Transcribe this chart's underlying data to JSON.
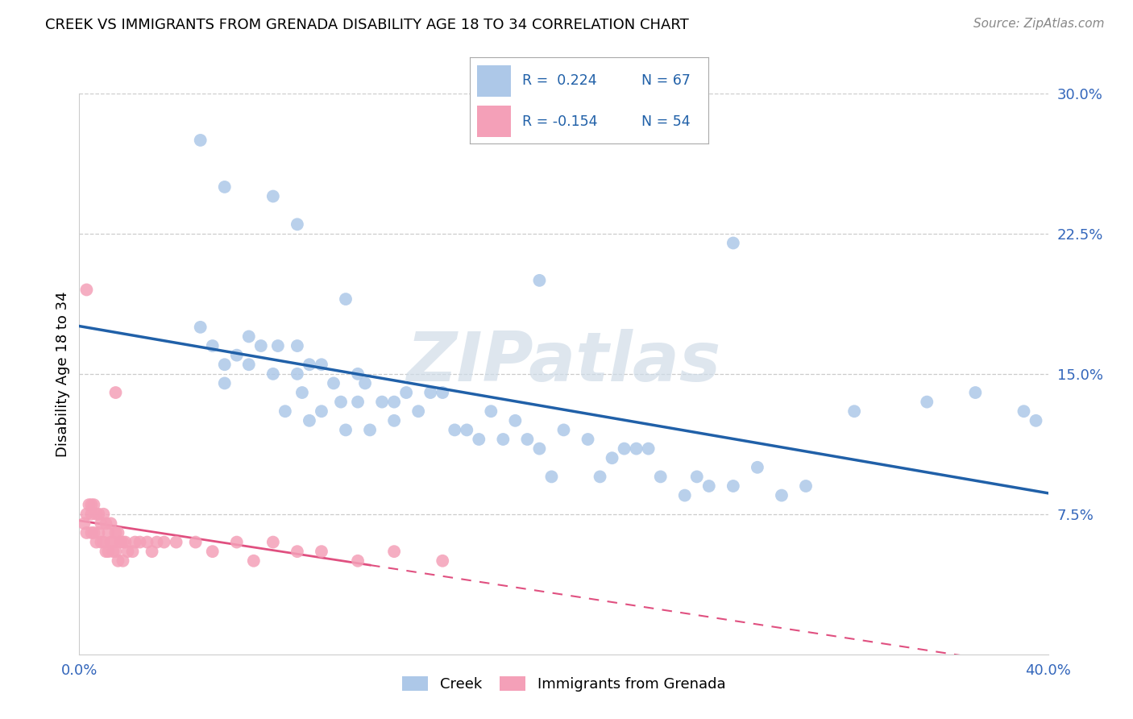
{
  "title": "CREEK VS IMMIGRANTS FROM GRENADA DISABILITY AGE 18 TO 34 CORRELATION CHART",
  "source": "Source: ZipAtlas.com",
  "ylabel": "Disability Age 18 to 34",
  "xmin": 0.0,
  "xmax": 0.4,
  "ymin": 0.0,
  "ymax": 0.3,
  "ytick_vals": [
    0.0,
    0.075,
    0.15,
    0.225,
    0.3
  ],
  "ytick_labels": [
    "",
    "7.5%",
    "15.0%",
    "22.5%",
    "30.0%"
  ],
  "creek_color": "#adc8e8",
  "creek_edge": "#adc8e8",
  "creek_line_color": "#2060a8",
  "gren_color": "#f4a0b8",
  "gren_edge": "#f4a0b8",
  "gren_line_color": "#e05080",
  "watermark": "ZIPatlas",
  "creek_x": [
    0.05,
    0.055,
    0.06,
    0.06,
    0.065,
    0.07,
    0.07,
    0.075,
    0.08,
    0.082,
    0.085,
    0.09,
    0.09,
    0.092,
    0.095,
    0.095,
    0.1,
    0.1,
    0.105,
    0.108,
    0.11,
    0.115,
    0.115,
    0.118,
    0.12,
    0.125,
    0.13,
    0.13,
    0.135,
    0.14,
    0.145,
    0.15,
    0.155,
    0.16,
    0.165,
    0.17,
    0.175,
    0.18,
    0.185,
    0.19,
    0.195,
    0.2,
    0.21,
    0.215,
    0.22,
    0.225,
    0.23,
    0.235,
    0.24,
    0.25,
    0.255,
    0.26,
    0.27,
    0.28,
    0.29,
    0.3,
    0.32,
    0.35,
    0.37,
    0.39,
    0.395,
    0.09,
    0.19,
    0.05,
    0.27,
    0.11,
    0.06,
    0.08
  ],
  "creek_y": [
    0.175,
    0.165,
    0.155,
    0.145,
    0.16,
    0.17,
    0.155,
    0.165,
    0.15,
    0.165,
    0.13,
    0.15,
    0.165,
    0.14,
    0.155,
    0.125,
    0.155,
    0.13,
    0.145,
    0.135,
    0.12,
    0.15,
    0.135,
    0.145,
    0.12,
    0.135,
    0.135,
    0.125,
    0.14,
    0.13,
    0.14,
    0.14,
    0.12,
    0.12,
    0.115,
    0.13,
    0.115,
    0.125,
    0.115,
    0.11,
    0.095,
    0.12,
    0.115,
    0.095,
    0.105,
    0.11,
    0.11,
    0.11,
    0.095,
    0.085,
    0.095,
    0.09,
    0.09,
    0.1,
    0.085,
    0.09,
    0.13,
    0.135,
    0.14,
    0.13,
    0.125,
    0.23,
    0.2,
    0.275,
    0.22,
    0.19,
    0.25,
    0.245
  ],
  "gren_x": [
    0.002,
    0.003,
    0.003,
    0.004,
    0.005,
    0.005,
    0.005,
    0.006,
    0.006,
    0.007,
    0.007,
    0.008,
    0.008,
    0.009,
    0.009,
    0.01,
    0.01,
    0.011,
    0.011,
    0.012,
    0.012,
    0.013,
    0.013,
    0.014,
    0.014,
    0.015,
    0.015,
    0.016,
    0.016,
    0.017,
    0.018,
    0.018,
    0.019,
    0.02,
    0.022,
    0.023,
    0.025,
    0.028,
    0.03,
    0.032,
    0.035,
    0.04,
    0.048,
    0.055,
    0.065,
    0.072,
    0.08,
    0.09,
    0.1,
    0.115,
    0.13,
    0.15,
    0.003,
    0.015
  ],
  "gren_y": [
    0.07,
    0.075,
    0.065,
    0.08,
    0.08,
    0.075,
    0.065,
    0.08,
    0.065,
    0.075,
    0.06,
    0.075,
    0.065,
    0.07,
    0.06,
    0.075,
    0.06,
    0.07,
    0.055,
    0.065,
    0.055,
    0.07,
    0.06,
    0.06,
    0.055,
    0.065,
    0.055,
    0.065,
    0.05,
    0.06,
    0.06,
    0.05,
    0.06,
    0.055,
    0.055,
    0.06,
    0.06,
    0.06,
    0.055,
    0.06,
    0.06,
    0.06,
    0.06,
    0.055,
    0.06,
    0.05,
    0.06,
    0.055,
    0.055,
    0.05,
    0.055,
    0.05,
    0.195,
    0.14
  ]
}
